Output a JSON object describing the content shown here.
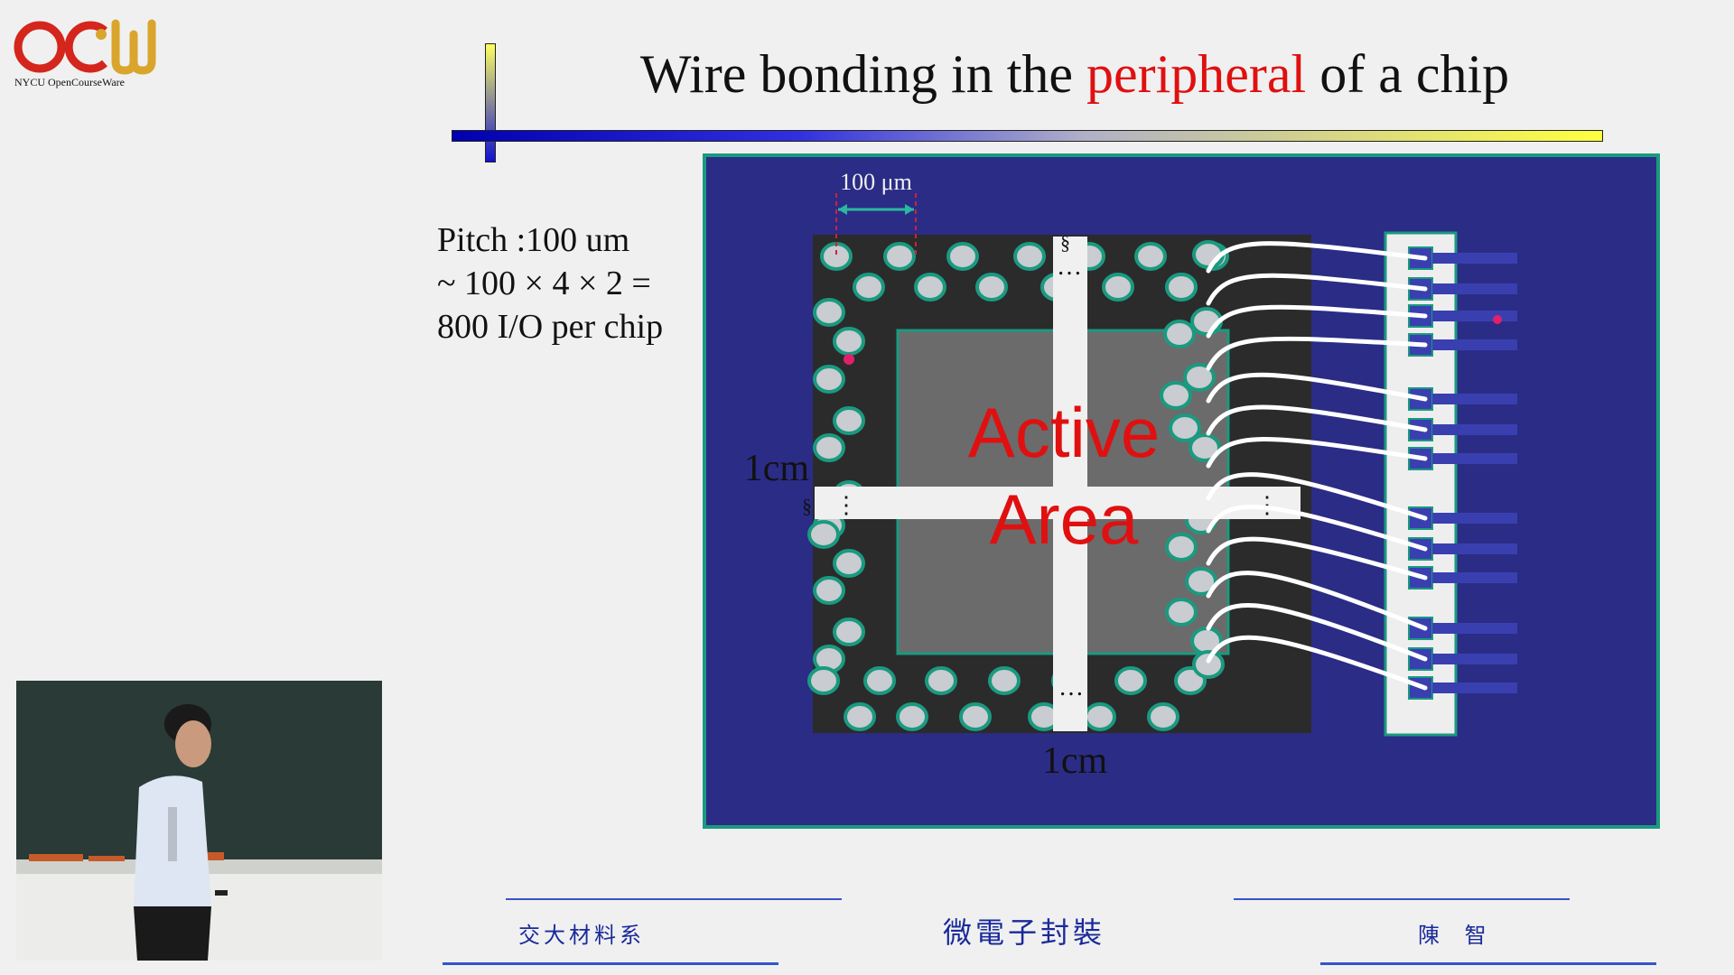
{
  "logo": {
    "main": "OCW",
    "sub": "NYCU OpenCourseWare"
  },
  "slide": {
    "title_prefix": "Wire bonding in the ",
    "title_highlight": "peripheral",
    "title_suffix": " of a chip",
    "pitch_lines": [
      "Pitch :100 um",
      "~ 100 × 4 × 2 =",
      "800 I/O per chip"
    ],
    "diagram": {
      "pitch_label": "100 μm",
      "left_dim": "1cm",
      "bottom_dim": "1cm",
      "active_line1": "Active",
      "active_line2": "Area",
      "colors": {
        "background": "#2b2c86",
        "border": "#1a9a80",
        "die": "#2b2b2b",
        "active": "#6b6b6b",
        "pad": "#c9ccd0",
        "highlight": "#e01010"
      }
    }
  },
  "footer": {
    "left": "交大材料系",
    "center": "微電子封裝",
    "right": "陳 智"
  },
  "video": {
    "description_icon": "lecturer-video"
  }
}
